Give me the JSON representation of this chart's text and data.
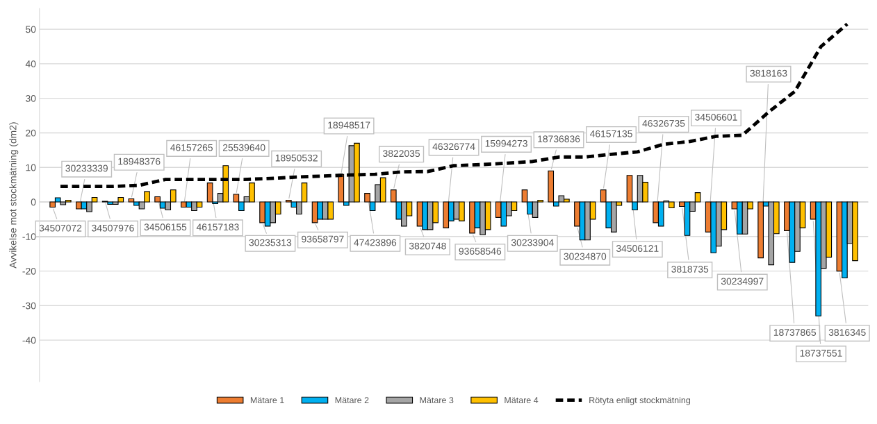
{
  "chart_data": {
    "type": "bar",
    "ylabel": "Avvikelse mot stockmätning (dm2)",
    "categories": [
      "34507072",
      "30233339",
      "34507976",
      "18948376",
      "34506155",
      "46157265",
      "46157183",
      "25539640",
      "30235313",
      "18950532",
      "93658797",
      "18948517",
      "47423896",
      "3822035",
      "3820748",
      "46326774",
      "93658546",
      "15994273",
      "30233904",
      "18736836",
      "30234870",
      "46157135",
      "34506121",
      "46326735",
      "3818735",
      "34506601",
      "30234997",
      "3818163",
      "18737865",
      "18737551",
      "3816345"
    ],
    "series": [
      {
        "name": "Mätare 1",
        "color": "#ed7d31",
        "values": [
          -1.5,
          -2,
          0.2,
          0.9,
          1.5,
          -1.5,
          5.5,
          2.2,
          -6,
          0.5,
          -6,
          8,
          2.5,
          3.5,
          -7,
          -7.5,
          -9,
          -4.5,
          3.5,
          9,
          -7,
          3.5,
          7.7,
          -6,
          -1.3,
          -8.7,
          -2,
          -16.2,
          -8.3,
          -5,
          -20
        ]
      },
      {
        "name": "Mätare 2",
        "color": "#00b0f0",
        "values": [
          1.2,
          -2,
          -0.7,
          -1,
          -1.8,
          -1.5,
          -0.5,
          -2.5,
          -7,
          -1.5,
          -5,
          -1,
          -2.5,
          -5,
          -8,
          -5.5,
          -7.5,
          -7,
          -3.5,
          -1.2,
          -11,
          -7.5,
          -2.3,
          -7,
          -9.7,
          -14.7,
          -9.3,
          -1.2,
          -17.5,
          -33,
          -22
        ]
      },
      {
        "name": "Mätare 3",
        "color": "#a5a5a5",
        "values": [
          -0.8,
          -2.8,
          -0.7,
          -2,
          -2.3,
          -2.5,
          2.5,
          1.5,
          -6,
          -3.5,
          -5,
          16.3,
          5,
          -7,
          -8,
          -5,
          -9.5,
          -4,
          -4.5,
          1.8,
          -11,
          -8.7,
          7.7,
          0.3,
          -2.7,
          -12.8,
          -9.3,
          -18.2,
          -14.3,
          -19.2,
          -12
        ]
      },
      {
        "name": "Mätare 4",
        "color": "#ffc000",
        "values": [
          0.5,
          1.3,
          1.3,
          3,
          3.5,
          -1.5,
          10.5,
          5.5,
          -3.5,
          5.5,
          -5,
          17,
          7,
          -4,
          -6,
          -5.5,
          -8,
          -2.5,
          0.5,
          0.8,
          -5,
          -1,
          5.7,
          -1.7,
          2.7,
          -8,
          -2,
          -9.2,
          -7.5,
          -16,
          -17
        ]
      },
      {
        "name": "Rötyta enligt stockmätning",
        "type": "line",
        "color": "#000000",
        "line_style": "dashed",
        "values": [
          4.5,
          4.5,
          4.5,
          4.8,
          6.5,
          6.5,
          6.5,
          6.5,
          6.8,
          7.2,
          7.5,
          7.8,
          8.0,
          8.7,
          8.8,
          10.5,
          10.8,
          11.2,
          11.7,
          13,
          13,
          13.8,
          14.5,
          16.7,
          17.5,
          19,
          19.3,
          26,
          32,
          45,
          51.5
        ]
      }
    ],
    "ylim": [
      -52,
      56
    ],
    "yticks": [
      -40,
      -30,
      -20,
      -10,
      0,
      10,
      20,
      30,
      40,
      50
    ],
    "grid": "y",
    "legend": "bottom",
    "tick_labels": "y"
  }
}
